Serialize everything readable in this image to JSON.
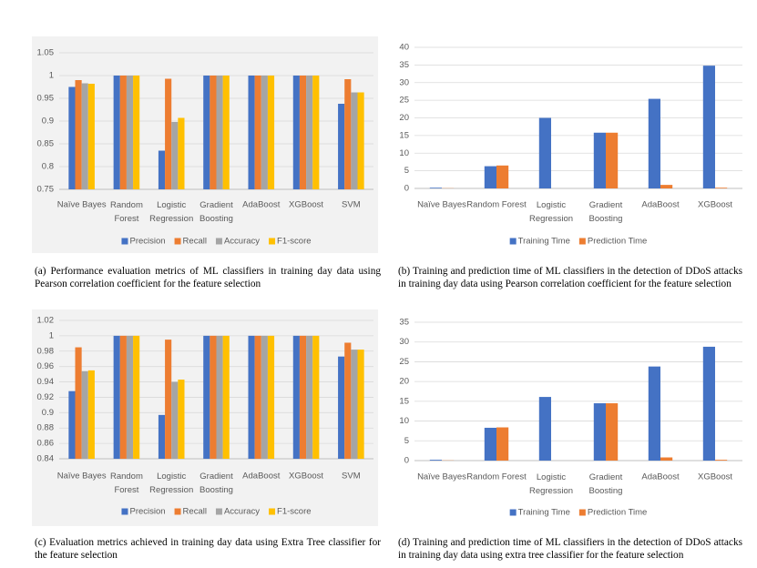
{
  "chart_data": [
    {
      "type": "bar",
      "categories": [
        "Naïve Bayes",
        "Random Forest",
        "Logistic Regression",
        "Gradient Boosting",
        "AdaBoost",
        "XGBoost",
        "SVM"
      ],
      "series": [
        {
          "name": "Precision",
          "color": "#4472c4",
          "values": [
            0.975,
            1,
            0.835,
            1,
            1,
            1,
            0.938
          ]
        },
        {
          "name": "Recall",
          "color": "#ed7d31",
          "values": [
            0.99,
            1,
            0.993,
            1,
            1,
            1,
            0.992
          ]
        },
        {
          "name": "Accuracy",
          "color": "#a5a5a5",
          "values": [
            0.983,
            1,
            0.898,
            1,
            1,
            1,
            0.963
          ]
        },
        {
          "name": "F1-score",
          "color": "#ffc000",
          "values": [
            0.982,
            1,
            0.907,
            1,
            1,
            1,
            0.963
          ]
        }
      ],
      "ylim": [
        0.75,
        1.05
      ],
      "yticks": [
        0.75,
        0.8,
        0.85,
        0.9,
        0.95,
        1,
        1.05
      ],
      "grid": true,
      "legend": "bottom",
      "caption": "(a) Performance evaluation metrics of ML classifiers in training day data using Pearson correlation coefficient for the feature selection"
    },
    {
      "type": "bar",
      "categories": [
        "Naïve Bayes",
        "Random Forest",
        "Logistic Regression",
        "Gradient Boosting",
        "AdaBoost",
        "XGBoost"
      ],
      "series": [
        {
          "name": "Training Time",
          "color": "#4472c4",
          "values": [
            0.2,
            6.3,
            20,
            15.8,
            25.4,
            34.8
          ]
        },
        {
          "name": "Prediction Time",
          "color": "#ed7d31",
          "values": [
            0.05,
            6.5,
            0,
            15.8,
            1.0,
            0.2
          ]
        }
      ],
      "ylim": [
        0,
        40
      ],
      "yticks": [
        0,
        5,
        10,
        15,
        20,
        25,
        30,
        35,
        40
      ],
      "grid": true,
      "legend": "bottom",
      "caption": "(b) Training and prediction time of ML classifiers in the detection of DDoS attacks in training day data using Pearson correlation coefficient for the feature selection"
    },
    {
      "type": "bar",
      "categories": [
        "Naïve Bayes",
        "Random Forest",
        "Logistic Regression",
        "Gradient Boosting",
        "AdaBoost",
        "XGBoost",
        "SVM"
      ],
      "series": [
        {
          "name": "Precision",
          "color": "#4472c4",
          "values": [
            0.928,
            1,
            0.897,
            1,
            1,
            1,
            0.973
          ]
        },
        {
          "name": "Recall",
          "color": "#ed7d31",
          "values": [
            0.985,
            1,
            0.995,
            1,
            1,
            1,
            0.991
          ]
        },
        {
          "name": "Accuracy",
          "color": "#a5a5a5",
          "values": [
            0.954,
            1,
            0.94,
            1,
            1,
            1,
            0.982
          ]
        },
        {
          "name": "F1-score",
          "color": "#ffc000",
          "values": [
            0.955,
            1,
            0.943,
            1,
            1,
            1,
            0.982
          ]
        }
      ],
      "ylim": [
        0.84,
        1.02
      ],
      "yticks": [
        0.84,
        0.86,
        0.88,
        0.9,
        0.92,
        0.94,
        0.96,
        0.98,
        1,
        1.02
      ],
      "grid": true,
      "legend": "bottom",
      "caption": "(c) Evaluation metrics achieved in training day data using Extra Tree classifier for the feature selection"
    },
    {
      "type": "bar",
      "categories": [
        "Naïve Bayes",
        "Random Forest",
        "Logistic Regression",
        "Gradient Boosting",
        "AdaBoost",
        "XGBoost"
      ],
      "series": [
        {
          "name": "Training Time",
          "color": "#4472c4",
          "values": [
            0.2,
            8.3,
            16.1,
            14.5,
            23.8,
            28.8
          ]
        },
        {
          "name": "Prediction Time",
          "color": "#ed7d31",
          "values": [
            0.05,
            8.4,
            0,
            14.5,
            0.8,
            0.2
          ]
        }
      ],
      "ylim": [
        0,
        35
      ],
      "yticks": [
        0,
        5,
        10,
        15,
        20,
        25,
        30,
        35
      ],
      "grid": true,
      "legend": "bottom",
      "caption": "(d) Training and prediction time of ML classifiers in the detection of DDoS attacks in training day data using extra tree classifier for the feature selection"
    }
  ]
}
